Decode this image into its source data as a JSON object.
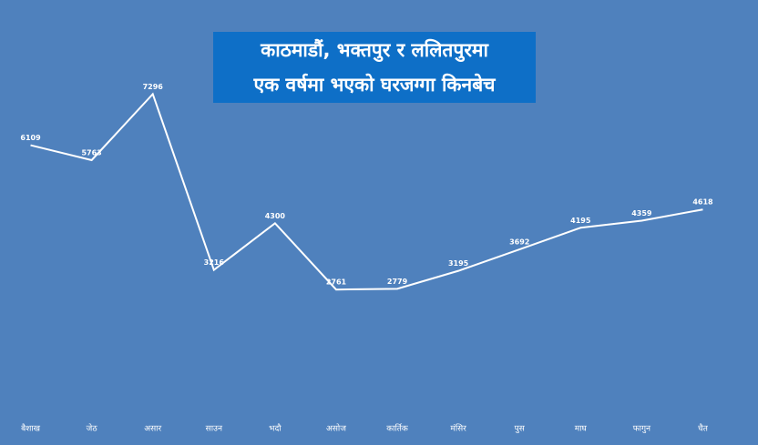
{
  "chart_data": {
    "type": "line",
    "title": [
      "काठमाडौं, भक्तपुर र ललितपुरमा",
      "एक वर्षमा भएको घरजग्गा किनबेच"
    ],
    "categories": [
      "बैशाख",
      "जेठ",
      "असार",
      "साउन",
      "भदौ",
      "असोज",
      "कार्तिक",
      "मंसिर",
      "पुस",
      "माघ",
      "फागुन",
      "चैत"
    ],
    "values": [
      6109,
      5763,
      7296,
      3216,
      4300,
      2761,
      2779,
      3195,
      3692,
      4195,
      4359,
      4618
    ],
    "color": "#ffffff",
    "ylim": [
      0,
      8000
    ]
  }
}
